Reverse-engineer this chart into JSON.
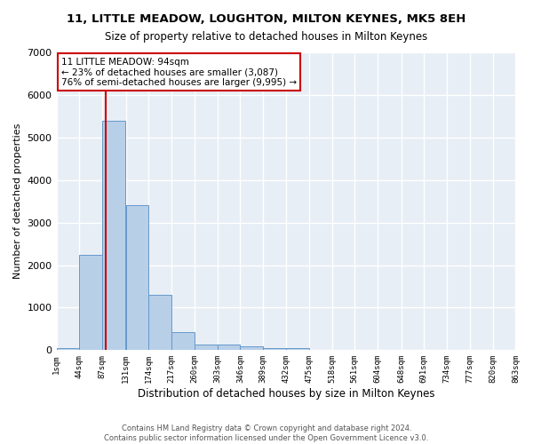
{
  "title": "11, LITTLE MEADOW, LOUGHTON, MILTON KEYNES, MK5 8EH",
  "subtitle": "Size of property relative to detached houses in Milton Keynes",
  "xlabel": "Distribution of detached houses by size in Milton Keynes",
  "ylabel": "Number of detached properties",
  "bar_color": "#b8cfe8",
  "bar_edge_color": "#6699cc",
  "background_color": "#e8eef5",
  "grid_color": "#ffffff",
  "annotation_box_color": "#cc0000",
  "property_line_color": "#cc0000",
  "property_size": 94,
  "annotation_text": "11 LITTLE MEADOW: 94sqm\n← 23% of detached houses are smaller (3,087)\n76% of semi-detached houses are larger (9,995) →",
  "bin_edges": [
    1,
    44,
    87,
    131,
    174,
    217,
    260,
    303,
    346,
    389,
    432,
    475,
    518,
    561,
    604,
    648,
    691,
    734,
    777,
    820,
    863
  ],
  "bin_heights": [
    50,
    2250,
    5400,
    3400,
    1300,
    420,
    130,
    130,
    100,
    50,
    50,
    0,
    0,
    0,
    0,
    0,
    0,
    0,
    0,
    0
  ],
  "ylim": [
    0,
    7000
  ],
  "yticks": [
    0,
    1000,
    2000,
    3000,
    4000,
    5000,
    6000,
    7000
  ],
  "footer_text": "Contains HM Land Registry data © Crown copyright and database right 2024.\nContains public sector information licensed under the Open Government Licence v3.0.",
  "tick_labels": [
    "1sqm",
    "44sqm",
    "87sqm",
    "131sqm",
    "174sqm",
    "217sqm",
    "260sqm",
    "303sqm",
    "346sqm",
    "389sqm",
    "432sqm",
    "475sqm",
    "518sqm",
    "561sqm",
    "604sqm",
    "648sqm",
    "691sqm",
    "734sqm",
    "777sqm",
    "820sqm",
    "863sqm"
  ]
}
